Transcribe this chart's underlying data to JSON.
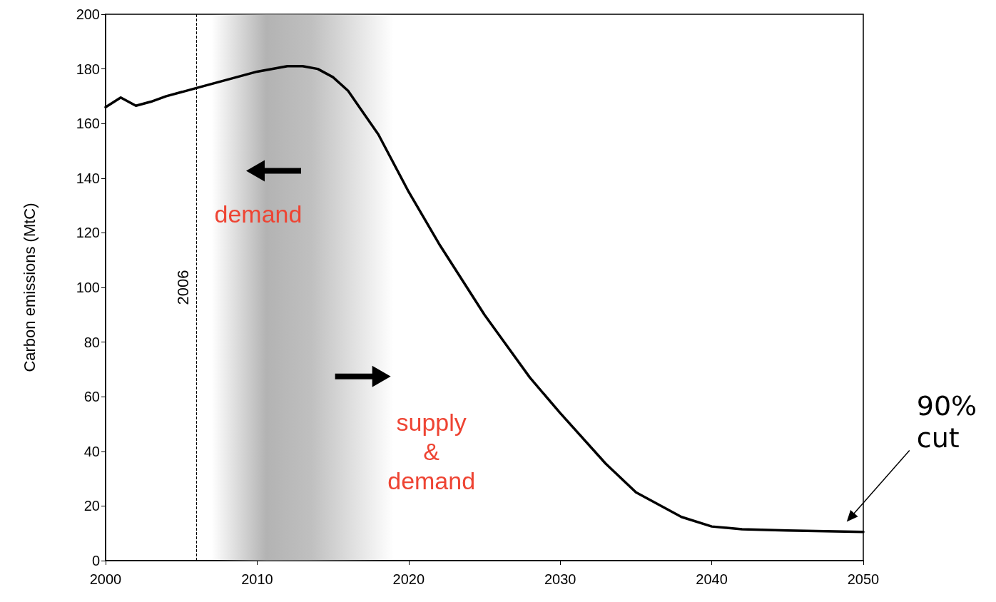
{
  "chart_data": {
    "type": "line",
    "ylabel": "Carbon emissions (MtC)",
    "x": [
      2000,
      2001,
      2002,
      2003,
      2004,
      2006,
      2008,
      2010,
      2012,
      2013,
      2014,
      2015,
      2016,
      2017,
      2018,
      2020,
      2022,
      2025,
      2028,
      2030,
      2033,
      2035,
      2038,
      2040,
      2042,
      2045,
      2050
    ],
    "series": [
      {
        "color": "#000000",
        "values": [
          166,
          169.5,
          166.5,
          168,
          170,
          173,
          176,
          179,
          181,
          181,
          180,
          177,
          172,
          164,
          156,
          135,
          116,
          90,
          67,
          54,
          35.5,
          25,
          16,
          12.5,
          11.5,
          11,
          10.5
        ]
      }
    ],
    "xlim": [
      2000,
      2050
    ],
    "xticks": [
      2000,
      2010,
      2020,
      2030,
      2040,
      2050
    ],
    "ylim": [
      0,
      200
    ],
    "yticks": [
      0,
      20,
      40,
      60,
      80,
      100,
      120,
      140,
      160,
      180,
      200
    ],
    "ref_lines": [
      {
        "axis": "x",
        "value": 2006,
        "label": "2006",
        "line_style": "dashed",
        "color": "#000000"
      }
    ],
    "bands": [
      {
        "axis": "x",
        "from": 2007,
        "to": 2019,
        "color": "#a0a0a0"
      }
    ],
    "annotations": [
      "demand",
      "supply\n&\ndemand",
      "90%\ncut"
    ],
    "grid": false,
    "marker": "none",
    "line_style": "solid"
  }
}
